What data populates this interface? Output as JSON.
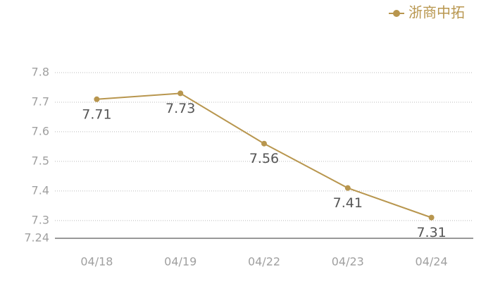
{
  "chart_data": {
    "type": "line",
    "categories": [
      "04/18",
      "04/19",
      "04/22",
      "04/23",
      "04/24"
    ],
    "series": [
      {
        "name": "浙商中拓",
        "color": "#b8964e",
        "values": [
          7.71,
          7.73,
          7.56,
          7.41,
          7.31
        ]
      }
    ],
    "ylim": [
      7.24,
      7.8
    ],
    "yticks": [
      7.24,
      7.3,
      7.4,
      7.5,
      7.6,
      7.7,
      7.8
    ],
    "grid": true,
    "legend": "top-right"
  }
}
